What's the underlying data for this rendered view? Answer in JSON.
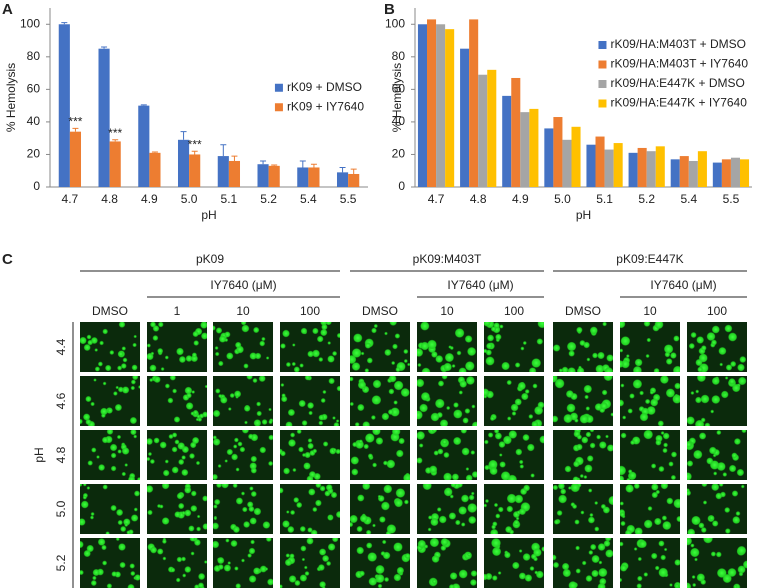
{
  "panel_labels": [
    "A",
    "B",
    "C"
  ],
  "chart_data": [
    {
      "type": "bar",
      "categories": [
        "4.7",
        "4.8",
        "4.9",
        "5.0",
        "5.1",
        "5.2",
        "5.4",
        "5.5"
      ],
      "x_label": "pH",
      "y_label": "% Hemolysis",
      "ylim": [
        0,
        110
      ],
      "yticks": [
        0,
        20,
        40,
        60,
        80,
        100
      ],
      "legend": "right",
      "series": [
        {
          "name": "rK09 + DMSO",
          "color": "#4472c4",
          "values": [
            100,
            85,
            50,
            29,
            19,
            14,
            12,
            9
          ],
          "errors": [
            1,
            1,
            0.5,
            5,
            7,
            2,
            4,
            3
          ]
        },
        {
          "name": "rK09 + IY7640",
          "color": "#ed7d31",
          "values": [
            34,
            28,
            21,
            20,
            16,
            13,
            12,
            8
          ],
          "errors": [
            2,
            1,
            0.5,
            2,
            3,
            0.5,
            2,
            3
          ],
          "annotations": [
            "***",
            "***",
            null,
            "***",
            null,
            null,
            null,
            null
          ]
        }
      ]
    },
    {
      "type": "bar",
      "categories": [
        "4.7",
        "4.8",
        "4.9",
        "5.0",
        "5.1",
        "5.2",
        "5.4",
        "5.5"
      ],
      "x_label": "pH",
      "y_label": "% Hemolysis",
      "ylim": [
        0,
        110
      ],
      "yticks": [
        0,
        20,
        40,
        60,
        80,
        100
      ],
      "legend": "upper right",
      "series": [
        {
          "name": "rK09/HA:M403T + DMSO",
          "color": "#4472c4",
          "values": [
            100,
            85,
            56,
            36,
            26,
            21,
            17,
            15
          ]
        },
        {
          "name": "rK09/HA:M403T + IY7640",
          "color": "#ed7d31",
          "values": [
            103,
            103,
            67,
            43,
            31,
            24,
            19,
            17
          ]
        },
        {
          "name": "rK09/HA:E447K + DMSO",
          "color": "#a5a5a5",
          "values": [
            100,
            69,
            46,
            29,
            23,
            22,
            16,
            18
          ]
        },
        {
          "name": "rK09/HA:E447K + IY7640",
          "color": "#ffc000",
          "values": [
            97,
            72,
            48,
            37,
            27,
            25,
            22,
            17
          ]
        }
      ]
    }
  ],
  "image_grid": {
    "groups": [
      {
        "name": "pK09",
        "treatment": "IY7640 (μM)",
        "columns": [
          "DMSO",
          "1",
          "10",
          "100"
        ]
      },
      {
        "name": "pK09:M403T",
        "treatment": "IY7640 (μM)",
        "columns": [
          "DMSO",
          "10",
          "100"
        ]
      },
      {
        "name": "pK09:E447K",
        "treatment": "IY7640 (μM)",
        "columns": [
          "DMSO",
          "10",
          "100"
        ]
      }
    ],
    "row_label": "pH",
    "rows": [
      "4.4",
      "4.6",
      "4.8",
      "5.0",
      "5.2"
    ]
  }
}
